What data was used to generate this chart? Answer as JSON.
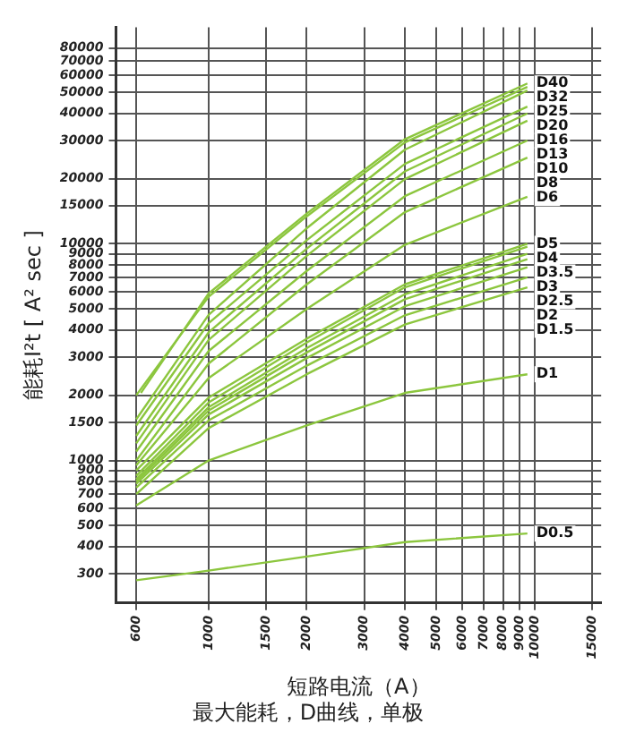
{
  "chart_data": {
    "type": "line",
    "xlabel": "短路电流（A）",
    "ylabel": "能耗I²t [ A² sec ]",
    "annotations": [
      "最大能耗，D曲线，单极"
    ],
    "log": "xy",
    "grid": true,
    "legend": false,
    "marker": "none",
    "line_style": "solid",
    "xlim": [
      520,
      16000
    ],
    "ylim": [
      220,
      100000
    ],
    "xticks": [
      600,
      1000,
      1500,
      2000,
      3000,
      4000,
      5000,
      6000,
      7000,
      8000,
      9000,
      10000,
      15000
    ],
    "yticks": [
      300,
      400,
      500,
      600,
      700,
      800,
      900,
      1000,
      1500,
      2000,
      3000,
      4000,
      5000,
      6000,
      7000,
      8000,
      9000,
      10000,
      15000,
      20000,
      30000,
      40000,
      50000,
      60000,
      70000,
      80000
    ],
    "x": [
      600,
      1000,
      2000,
      4000,
      9500
    ],
    "series": [
      {
        "name": "D40",
        "color": "#8cc63e",
        "x": [
          620,
          1000,
          2000,
          4000,
          9500
        ],
        "values": [
          2050,
          5900,
          13800,
          30400,
          55000
        ]
      },
      {
        "name": "D32",
        "color": "#8cc63e",
        "values": [
          2000,
          5700,
          13400,
          29400,
          53000
        ]
      },
      {
        "name": "D25",
        "color": "#8cc63e",
        "values": [
          1550,
          4700,
          11800,
          27200,
          51000
        ]
      },
      {
        "name": "D20",
        "color": "#8cc63e",
        "values": [
          1450,
          4300,
          10400,
          23400,
          43000
        ]
      },
      {
        "name": "D16",
        "color": "#8cc63e",
        "values": [
          1300,
          3900,
          9500,
          21600,
          40000
        ]
      },
      {
        "name": "D13",
        "color": "#8cc63e",
        "values": [
          1200,
          3600,
          8800,
          19900,
          37000
        ]
      },
      {
        "name": "D10",
        "color": "#8cc63e",
        "values": [
          1100,
          3200,
          7500,
          16600,
          30000
        ]
      },
      {
        "name": "D8",
        "color": "#8cc63e",
        "values": [
          1000,
          2800,
          6500,
          14000,
          25000
        ]
      },
      {
        "name": "D6",
        "color": "#8cc63e",
        "values": [
          950,
          2400,
          5000,
          9900,
          16500
        ]
      },
      {
        "name": "D5",
        "color": "#8cc63e",
        "values": [
          900,
          1950,
          3650,
          6500,
          10000
        ]
      },
      {
        "name": "D4",
        "color": "#8cc63e",
        "values": [
          850,
          1850,
          3500,
          6300,
          9700
        ]
      },
      {
        "name": "D3.5",
        "color": "#8cc63e",
        "values": [
          820,
          1760,
          3300,
          5850,
          9000
        ]
      },
      {
        "name": "D3",
        "color": "#8cc63e",
        "values": [
          800,
          1700,
          3150,
          5550,
          8500
        ]
      },
      {
        "name": "D2.5",
        "color": "#8cc63e",
        "values": [
          780,
          1630,
          2970,
          5150,
          7800
        ]
      },
      {
        "name": "D2",
        "color": "#8cc63e",
        "values": [
          750,
          1530,
          2740,
          4680,
          7000
        ]
      },
      {
        "name": "D1.5",
        "color": "#8cc63e",
        "values": [
          700,
          1410,
          2500,
          4240,
          6300
        ]
      },
      {
        "name": "D1",
        "color": "#8cc63e",
        "values": [
          620,
          1000,
          1450,
          2050,
          2500
        ]
      },
      {
        "name": "D0.5",
        "color": "#8cc63e",
        "values": [
          280,
          310,
          360,
          420,
          460
        ]
      }
    ]
  }
}
